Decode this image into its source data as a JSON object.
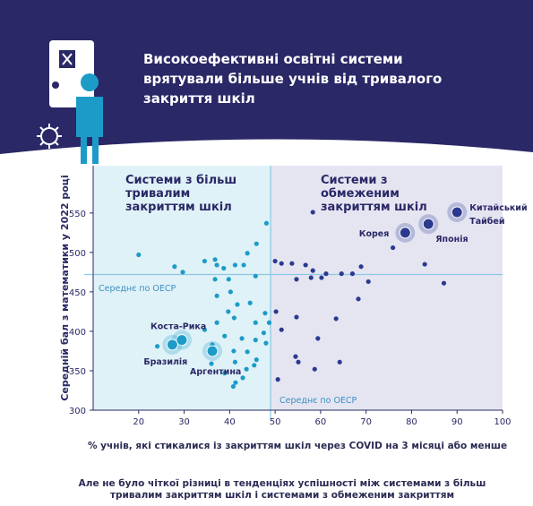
{
  "header": {
    "title": "Високоефективні освітні системи врятували більше учнів від тривалого закриття шкіл"
  },
  "chart_data": {
    "type": "scatter",
    "x_label": "% учнів, які стикалися із закриттям шкіл через COVID на 3 місяці або менше",
    "y_label": "Середній бал з математики у 2022 році",
    "xlim": [
      10,
      100
    ],
    "xticks": [
      20,
      30,
      40,
      50,
      60,
      70,
      80,
      90,
      100
    ],
    "ylim": [
      300,
      610
    ],
    "yticks": [
      300,
      350,
      400,
      450,
      500,
      550
    ],
    "regions": [
      {
        "label": [
          "Системи з більш",
          "тривалим",
          "закриттям шкіл"
        ],
        "color": "#dff2f7"
      },
      {
        "label": [
          "Системи з",
          "обмеженим",
          "закриттям шкіл"
        ],
        "color": "#e5e5f2"
      }
    ],
    "oecd": {
      "x": 49,
      "y": 472,
      "x_label": "Середнє по ОЕСР",
      "y_label": "Середнє по ОЕСР",
      "color": "#8cc8e4"
    },
    "series": [
      {
        "color": "#1c9bc8",
        "x": [
          20,
          27.9,
          29.7,
          34.5,
          36.8,
          37.2,
          38.7,
          41.2,
          43.1,
          43.9,
          45.9,
          48.1,
          45.7,
          36.8,
          39.8,
          37.2,
          40.2,
          41.7,
          39.7,
          44.5,
          37.2,
          41,
          45.7,
          47.8,
          34.5,
          38.9,
          42.7,
          45.7,
          48,
          36.2,
          24.1,
          40.9,
          43.9,
          45.9,
          41.2,
          45.4,
          36,
          43.7,
          38.9,
          41.3,
          42.9,
          40.8,
          48.7,
          47.5
        ],
        "values": [
          497,
          482,
          475,
          489,
          491,
          484,
          480,
          484,
          484,
          499,
          511,
          537,
          470,
          466,
          466,
          445,
          450,
          434,
          425,
          436,
          411,
          417,
          411,
          423,
          402,
          394,
          391,
          389,
          385,
          383,
          381,
          375,
          374,
          364,
          361,
          357,
          359,
          352,
          347,
          335,
          341,
          330,
          411,
          398
        ]
      },
      {
        "color": "#2b3a8f",
        "x": [
          50,
          51.4,
          53.7,
          56.7,
          58.3,
          61.2,
          64.6,
          67,
          68.9,
          70.5,
          54.7,
          60.2,
          57.9,
          54.7,
          50.2,
          51.4,
          63.4,
          59.4,
          54.5,
          55.1,
          58.7,
          64.2,
          50.6,
          68.3,
          82.9,
          87.1,
          75.9,
          58.3
        ],
        "values": [
          489,
          486,
          486,
          484,
          477,
          473,
          473,
          473,
          482,
          463,
          466,
          468,
          468,
          418,
          425,
          402,
          416,
          391,
          368,
          361,
          352,
          361,
          339,
          441,
          485,
          461,
          506,
          551
        ]
      }
    ],
    "highlighted": [
      {
        "label": [
          "Коста-Рика"
        ],
        "x": 29.5,
        "y": 389,
        "color": "#1c9bc8"
      },
      {
        "label": [
          "Бразилія"
        ],
        "x": 27.4,
        "y": 383,
        "color": "#1c9bc8"
      },
      {
        "label": [
          "Аргентина"
        ],
        "x": 36.2,
        "y": 375,
        "color": "#1c9bc8"
      },
      {
        "label": [
          "Корея"
        ],
        "x": 78.6,
        "y": 525,
        "color": "#2b3a8f"
      },
      {
        "label": [
          "Японія"
        ],
        "x": 83.7,
        "y": 536,
        "color": "#2b3a8f"
      },
      {
        "label": [
          "Китайський",
          "Тайбей"
        ],
        "x": 90,
        "y": 551,
        "color": "#2b3a8f"
      }
    ]
  },
  "note": "Але не було чіткої різниці в тенденціях успішності між системами з більш тривалим закриттям шкіл і системами з обмеженим закриттям"
}
